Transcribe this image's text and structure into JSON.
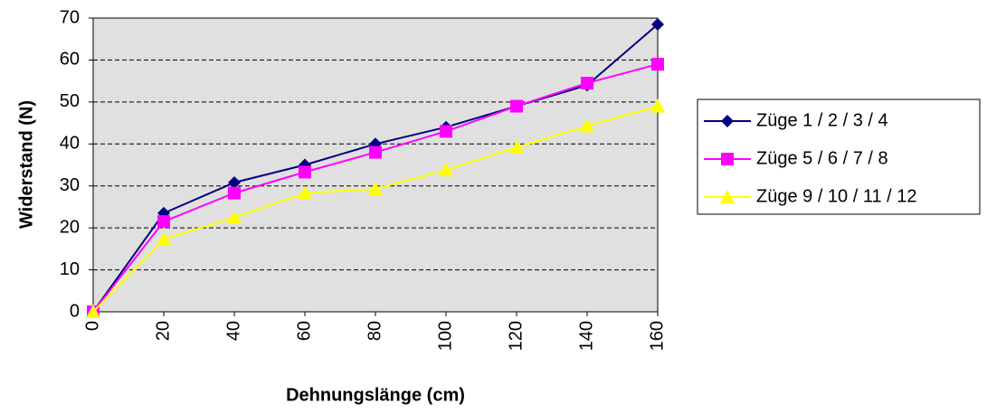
{
  "chart_data": {
    "type": "line",
    "x": [
      0,
      20,
      40,
      60,
      80,
      100,
      120,
      140,
      160
    ],
    "series": [
      {
        "name": "Züge 1 / 2 / 3 / 4",
        "color": "#000080",
        "marker": "diamond",
        "values": [
          0,
          23.5,
          30.8,
          35,
          40,
          44,
          49,
          54,
          68.5
        ]
      },
      {
        "name": "Züge 5 / 6 / 7 / 8",
        "color": "#ff00ff",
        "marker": "square",
        "values": [
          0,
          21.5,
          28.3,
          33.3,
          38,
          43,
          49,
          54.5,
          59
        ]
      },
      {
        "name": "Züge 9 / 10 / 11 / 12",
        "color": "#ffff00",
        "marker": "triangle",
        "values": [
          0,
          17.3,
          22.5,
          28.3,
          29.3,
          33.8,
          39.2,
          44.3,
          49
        ]
      }
    ],
    "xlabel": "Dehnungslänge (cm)",
    "ylabel": "Widerstand (N)",
    "xlim": [
      0,
      160
    ],
    "xticks": [
      0,
      20,
      40,
      60,
      80,
      100,
      120,
      140,
      160
    ],
    "ylim": [
      0,
      70
    ],
    "yticks": [
      0,
      10,
      20,
      30,
      40,
      50,
      60,
      70
    ],
    "grid": true,
    "legend": "right"
  }
}
